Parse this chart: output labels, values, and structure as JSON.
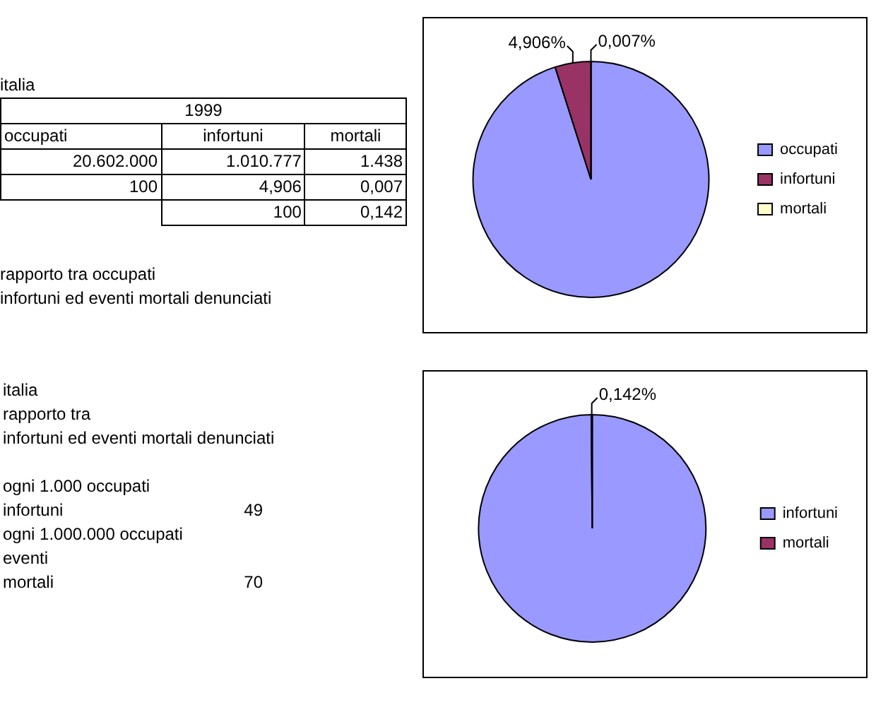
{
  "chart_data": [
    {
      "type": "other",
      "title": "italia",
      "subtitle": "1999",
      "categories": [
        "occupati",
        "infortuni",
        "mortali"
      ],
      "cell_labels": [
        [
          "20.602.000",
          "1.010.777",
          "1.438"
        ],
        [
          "100",
          "4,906",
          "0,007"
        ],
        [
          null,
          "100",
          "0,142"
        ]
      ],
      "annotations": [
        "rapporto tra occupati",
        "infortuni ed eventi mortali denunciati"
      ]
    },
    {
      "type": "pie",
      "categories": [
        "occupati",
        "infortuni",
        "mortali"
      ],
      "values": [
        95.087,
        4.906,
        0.007
      ],
      "colors": [
        "#9999ff",
        "#993366",
        "#ffffcc"
      ],
      "value_labels": [
        null,
        "4,906%",
        "0,007%"
      ],
      "legend": "right"
    },
    {
      "type": "other",
      "title": "italia",
      "annotations": [
        "rapporto tra",
        "infortuni ed eventi mortali denunciati",
        "ogni 1.000 occupati",
        "infortuni\t49",
        "ogni 1.000.000 occupati",
        "eventi",
        "mortali\t70"
      ]
    },
    {
      "type": "pie",
      "categories": [
        "infortuni",
        "mortali"
      ],
      "values": [
        99.858,
        0.142
      ],
      "colors": [
        "#9999ff",
        "#993366"
      ],
      "value_labels": [
        null,
        "0,142%"
      ],
      "legend": "right"
    }
  ]
}
